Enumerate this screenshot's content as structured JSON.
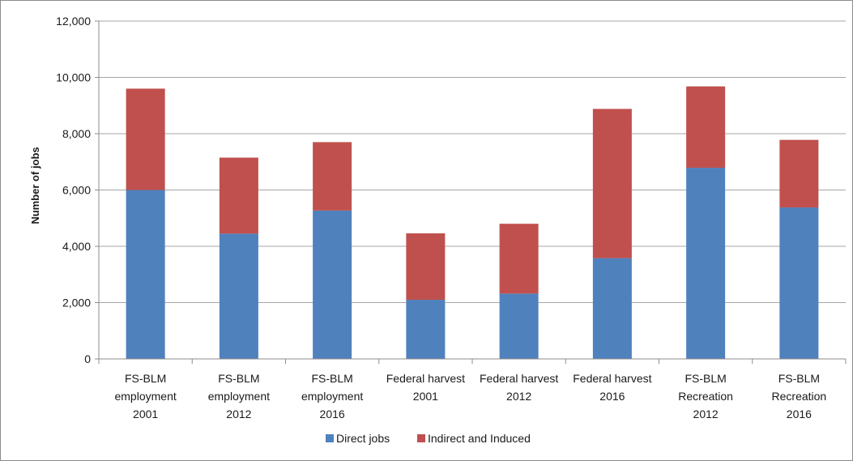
{
  "chart_data": {
    "type": "bar",
    "stacked": true,
    "title": "",
    "xlabel": "",
    "ylabel": "Number of jobs",
    "ylim": [
      0,
      12000
    ],
    "yticks": [
      0,
      2000,
      4000,
      6000,
      8000,
      10000,
      12000
    ],
    "ytick_labels": [
      "0",
      "2,000",
      "4,000",
      "6,000",
      "8,000",
      "10,000",
      "12,000"
    ],
    "grid": true,
    "legend": "bottom",
    "categories": [
      [
        "FS-BLM",
        "employment",
        "2001"
      ],
      [
        "FS-BLM",
        "employment",
        "2012"
      ],
      [
        "FS-BLM",
        "employment",
        "2016"
      ],
      [
        "Federal harvest",
        "2001"
      ],
      [
        "Federal harvest",
        "2012"
      ],
      [
        "Federal harvest",
        "2016"
      ],
      [
        "FS-BLM",
        "Recreation",
        "2012"
      ],
      [
        "FS-BLM",
        "Recreation",
        "2016"
      ]
    ],
    "series": [
      {
        "name": "Direct jobs",
        "color": "#4f81bd",
        "values": [
          6000,
          4450,
          5270,
          2100,
          2320,
          3580,
          6790,
          5380
        ]
      },
      {
        "name": "Indirect and Induced",
        "color": "#c0504d",
        "values": [
          3600,
          2700,
          2430,
          2360,
          2480,
          5300,
          2890,
          2400
        ]
      }
    ]
  }
}
